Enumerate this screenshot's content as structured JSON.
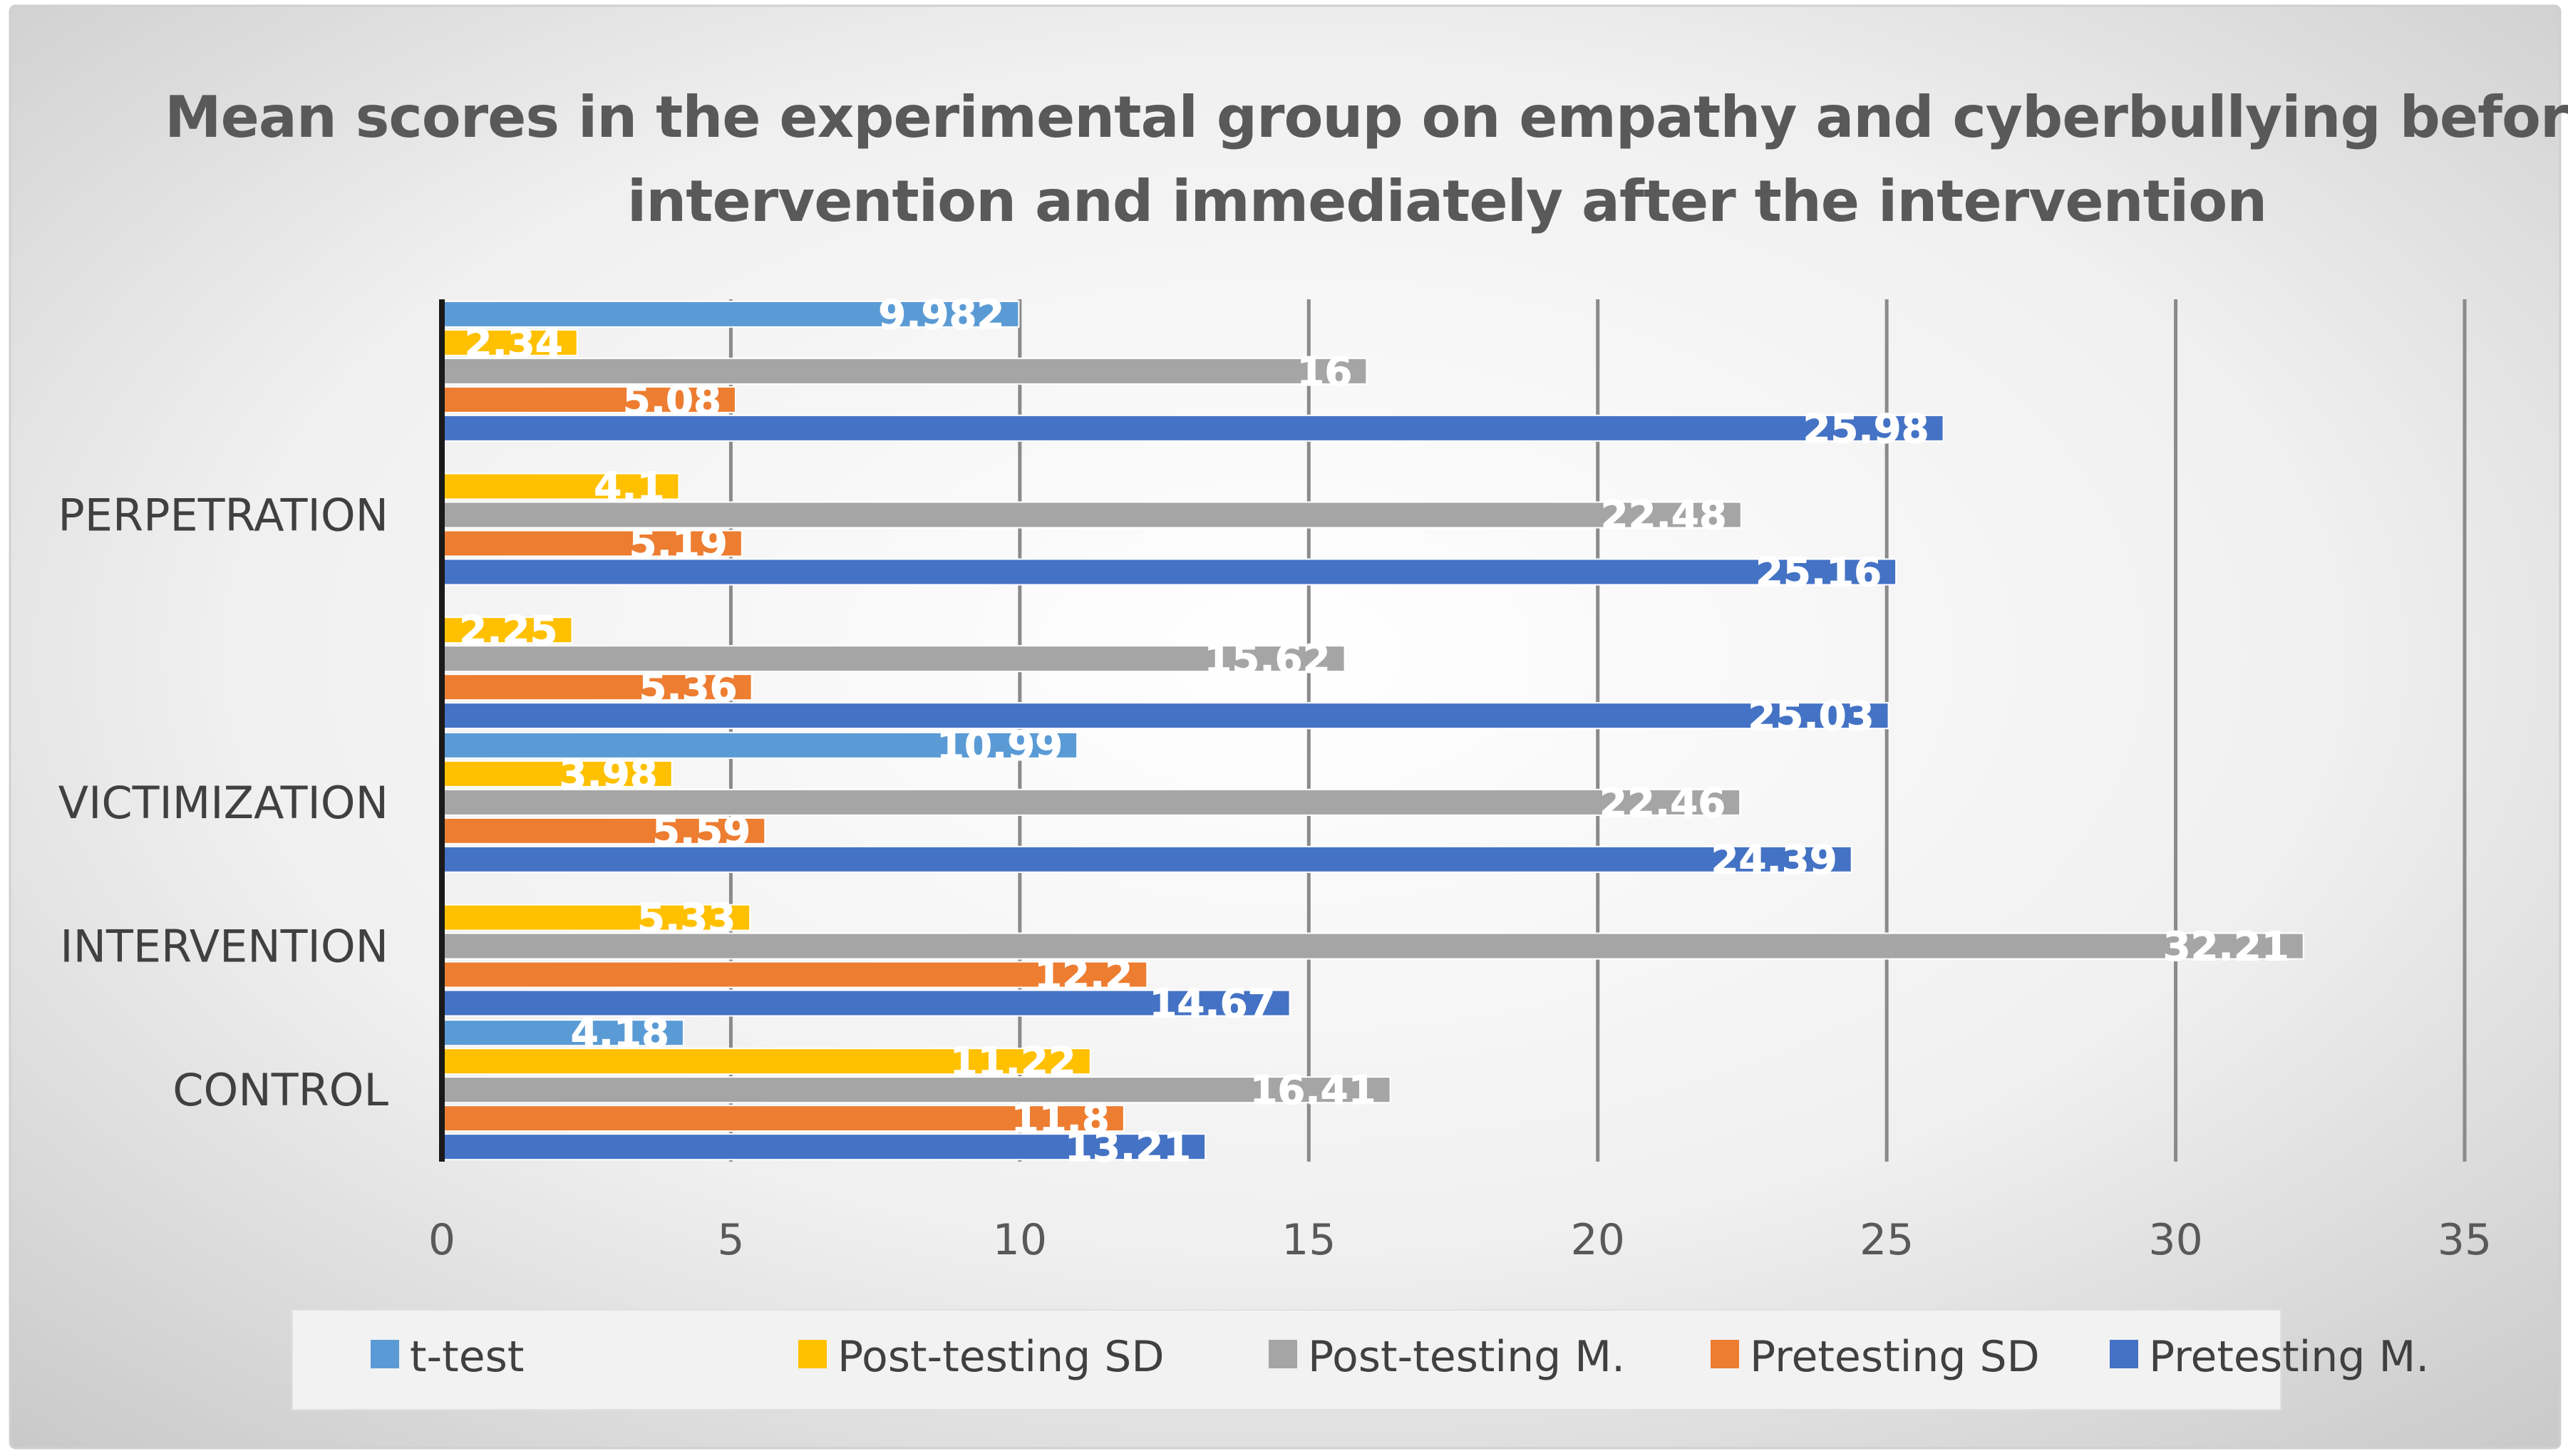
{
  "chart_data": {
    "type": "bar",
    "orientation": "horizontal",
    "title": "Mean scores in the experimental group on empathy and cyberbullying before the intervention and immediately after the intervention",
    "title_lines": [
      "Mean scores in the experimental group on empathy and cyberbullying before the",
      "intervention and immediately after the intervention"
    ],
    "categories": [
      "CONTROL",
      "INTERVENTION",
      "VICTIMIZATION",
      "",
      "PERPETRATION",
      ""
    ],
    "xlim": [
      0,
      35
    ],
    "xticks": [
      "0",
      "5",
      "10",
      "15",
      "20",
      "25",
      "30",
      "35"
    ],
    "legend_position": "bottom",
    "series": [
      {
        "name": "Pretesting M.",
        "color": "#4472C4",
        "values": [
          13.21,
          14.67,
          24.39,
          25.03,
          25.16,
          25.98
        ]
      },
      {
        "name": "Pretesting SD",
        "color": "#ED7D31",
        "values": [
          11.8,
          12.2,
          5.59,
          5.36,
          5.19,
          5.08
        ]
      },
      {
        "name": "Post-testing M.",
        "color": "#A5A5A5",
        "values": [
          16.41,
          32.21,
          22.46,
          15.62,
          22.48,
          16
        ]
      },
      {
        "name": "Post-testing SD",
        "color": "#FFC000",
        "values": [
          11.22,
          5.33,
          3.98,
          2.25,
          4.1,
          2.34
        ]
      },
      {
        "name": "t-test",
        "color": "#5B9BD5",
        "values": [
          4.18,
          null,
          10.99,
          null,
          null,
          9.982
        ]
      }
    ],
    "value_labels": [
      [
        "13.21",
        "14.67",
        "24.39",
        "25.03",
        "25.16",
        "25.98"
      ],
      [
        "11.8",
        "12.2",
        "5.59",
        "5.36",
        "5.19",
        "5.08"
      ],
      [
        "16.41",
        "32.21",
        "22.46",
        "15.62",
        "22.48",
        "16"
      ],
      [
        "11.22",
        "5.33",
        "3.98",
        "2.25",
        "4.1",
        "2.34"
      ],
      [
        "4.18",
        "",
        "10.99",
        "",
        "",
        "9.982"
      ]
    ],
    "legend_order": [
      "t-test",
      "Post-testing SD",
      "Post-testing M.",
      "Pretesting SD",
      "Pretesting M."
    ]
  }
}
